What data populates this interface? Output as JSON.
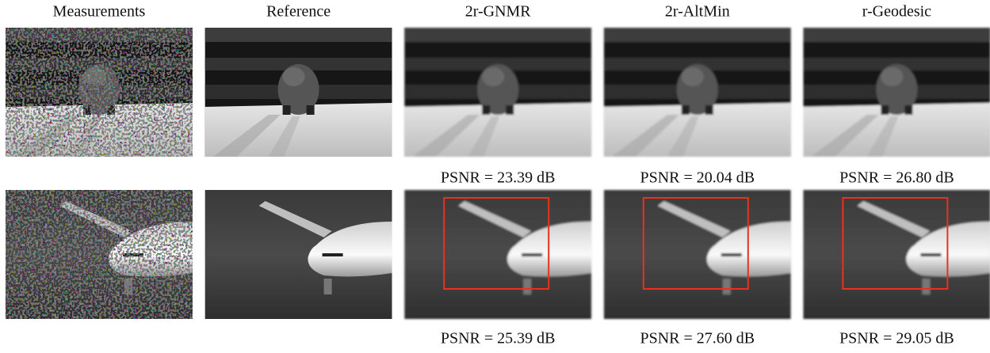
{
  "headers": [
    "Measurements",
    "Reference",
    "2r-GNMR",
    "2r-AltMin",
    "r-Geodesic"
  ],
  "psnr": [
    [
      "PSNR = 23.39 dB",
      "PSNR = 20.04 dB",
      "PSNR = 26.80 dB"
    ],
    [
      "PSNR = 25.39 dB",
      "PSNR = 27.60 dB",
      "PSNR = 29.05 dB"
    ]
  ]
}
